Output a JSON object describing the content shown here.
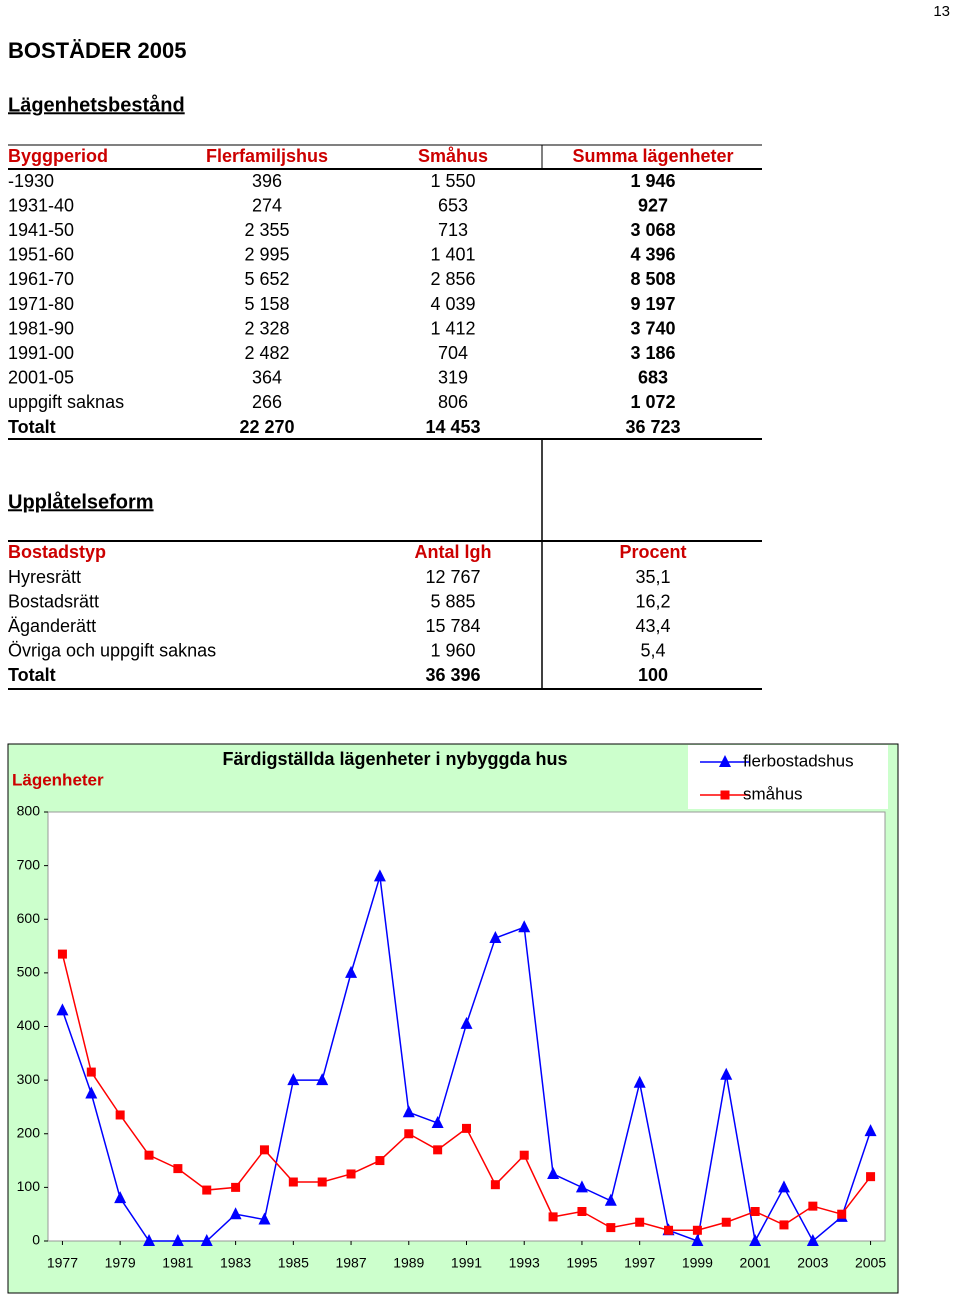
{
  "page_number": "13",
  "title": "BOSTÄDER 2005",
  "stock": {
    "heading": "Lägenhetsbestånd",
    "columns": [
      "Byggperiod",
      "Flerfamiljshus",
      "Småhus",
      "Summa lägenheter"
    ],
    "rows": [
      [
        "-1930",
        "396",
        "1 550",
        "1 946"
      ],
      [
        "1931-40",
        "274",
        "653",
        "927"
      ],
      [
        "1941-50",
        "2 355",
        "713",
        "3 068"
      ],
      [
        "1951-60",
        "2 995",
        "1 401",
        "4 396"
      ],
      [
        "1961-70",
        "5 652",
        "2 856",
        "8 508"
      ],
      [
        "1971-80",
        "5 158",
        "4 039",
        "9 197"
      ],
      [
        "1981-90",
        "2 328",
        "1 412",
        "3 740"
      ],
      [
        "1991-00",
        "2 482",
        "704",
        "3 186"
      ],
      [
        "2001-05",
        "364",
        "319",
        "683"
      ],
      [
        "uppgift saknas",
        "266",
        "806",
        "1 072"
      ],
      [
        "Totalt",
        "22 270",
        "14 453",
        "36 723"
      ]
    ]
  },
  "tenure": {
    "heading": "Upplåtelseform",
    "columns": [
      "Bostadstyp",
      "Antal lgh",
      "Procent"
    ],
    "rows": [
      [
        "Hyresrätt",
        "12 767",
        "35,1"
      ],
      [
        "Bostadsrätt",
        "5 885",
        "16,2"
      ],
      [
        "Äganderätt",
        "15 784",
        "43,4"
      ],
      [
        "Övriga och uppgift saknas",
        "1 960",
        "5,4"
      ],
      [
        "Totalt",
        "36 396",
        "100"
      ]
    ]
  },
  "chart_data": {
    "type": "line",
    "title": "Färdigställda lägenheter i nybyggda hus",
    "y_label": "Lägenheter",
    "x": [
      1977,
      1978,
      1979,
      1980,
      1981,
      1982,
      1983,
      1984,
      1985,
      1986,
      1987,
      1988,
      1989,
      1990,
      1991,
      1992,
      1993,
      1994,
      1995,
      1996,
      1997,
      1998,
      1999,
      2000,
      2001,
      2002,
      2003,
      2004,
      2005
    ],
    "xlim": [
      1976.5,
      2005.5
    ],
    "xticks": [
      1977,
      1979,
      1981,
      1983,
      1985,
      1987,
      1989,
      1991,
      1993,
      1995,
      1997,
      1999,
      2001,
      2003,
      2005
    ],
    "ylim": [
      0,
      800
    ],
    "yticks": [
      0,
      100,
      200,
      300,
      400,
      500,
      600,
      700,
      800
    ],
    "legend": "top-right",
    "series": [
      {
        "name": "flerbostadshus",
        "color": "#0000ff",
        "marker": "triangle",
        "values": [
          430,
          275,
          80,
          0,
          0,
          0,
          50,
          40,
          300,
          300,
          500,
          680,
          240,
          220,
          405,
          565,
          585,
          125,
          100,
          75,
          295,
          20,
          0,
          310,
          0,
          100,
          0,
          45,
          205
        ]
      },
      {
        "name": "småhus",
        "color": "#ff0000",
        "marker": "square",
        "values": [
          535,
          315,
          235,
          160,
          135,
          95,
          100,
          170,
          110,
          110,
          125,
          150,
          200,
          170,
          210,
          105,
          160,
          45,
          55,
          25,
          35,
          20,
          20,
          35,
          55,
          30,
          65,
          50,
          120
        ]
      }
    ]
  }
}
